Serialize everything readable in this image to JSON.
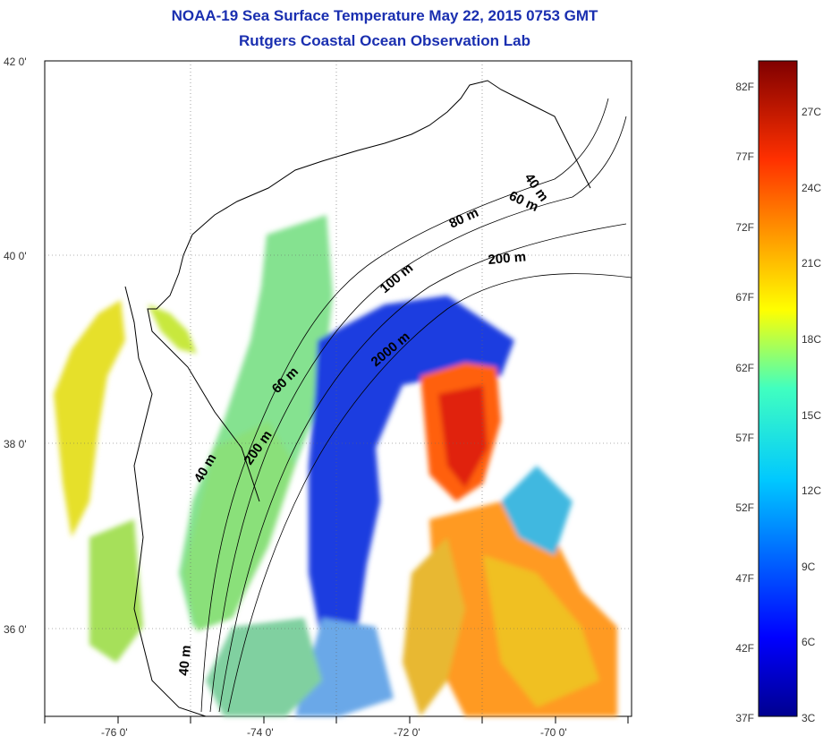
{
  "title": {
    "line1": "NOAA-19 Sea Surface Temperature May 22, 2015 0753 GMT",
    "line2": "Rutgers Coastal Ocean Observation Lab"
  },
  "axes": {
    "lat_ticks": [
      "42 0'",
      "40 0'",
      "38 0'",
      "36 0'"
    ],
    "lon_ticks": [
      "-76 0'",
      "-74 0'",
      "-72 0'",
      "-70 0'"
    ]
  },
  "isobaths": [
    "40 m",
    "60 m",
    "80 m",
    "200 m",
    "100 m",
    "2000 m",
    "60 m",
    "40 m",
    "200 m",
    "40 m"
  ],
  "colorbar": {
    "fahrenheit": [
      "82F",
      "77F",
      "72F",
      "67F",
      "62F",
      "57F",
      "52F",
      "47F",
      "42F",
      "37F"
    ],
    "celsius": [
      "27C",
      "24C",
      "21C",
      "18C",
      "15C",
      "12C",
      "9C",
      "6C",
      "3C"
    ]
  },
  "colors": {
    "title": "#1a2fb0",
    "land": "#ffffff",
    "grid": "#666666"
  }
}
